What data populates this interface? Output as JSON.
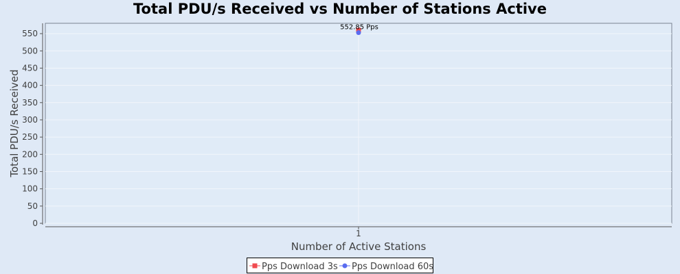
{
  "chart_data": {
    "type": "line",
    "title": "Total PDU/s Received vs Number of Stations Active",
    "xlabel": "Number of Active Stations",
    "ylabel": "Total PDU/s Received",
    "categories": [
      "1"
    ],
    "ylim": [
      0,
      580
    ],
    "yticks": [
      0,
      50,
      100,
      150,
      200,
      250,
      300,
      350,
      400,
      450,
      500,
      550
    ],
    "grid": true,
    "legend": "bottom",
    "series": [
      {
        "name": "Pps Download 3s",
        "values": [
          560
        ],
        "color": "#f04b50",
        "marker": "square"
      },
      {
        "name": "Pps Download 60s",
        "values": [
          552.85
        ],
        "color": "#5a6cf0",
        "marker": "circle"
      }
    ],
    "annotations": [
      {
        "text": "552.85 Pps",
        "category": "1",
        "value": 552.85
      }
    ]
  },
  "colors": {
    "page_background": "#dfe9f6",
    "plot_background": "#e0ebf7",
    "plot_border": "#7a8290",
    "gridline": "#f2f6fb",
    "axis": "#555555"
  }
}
